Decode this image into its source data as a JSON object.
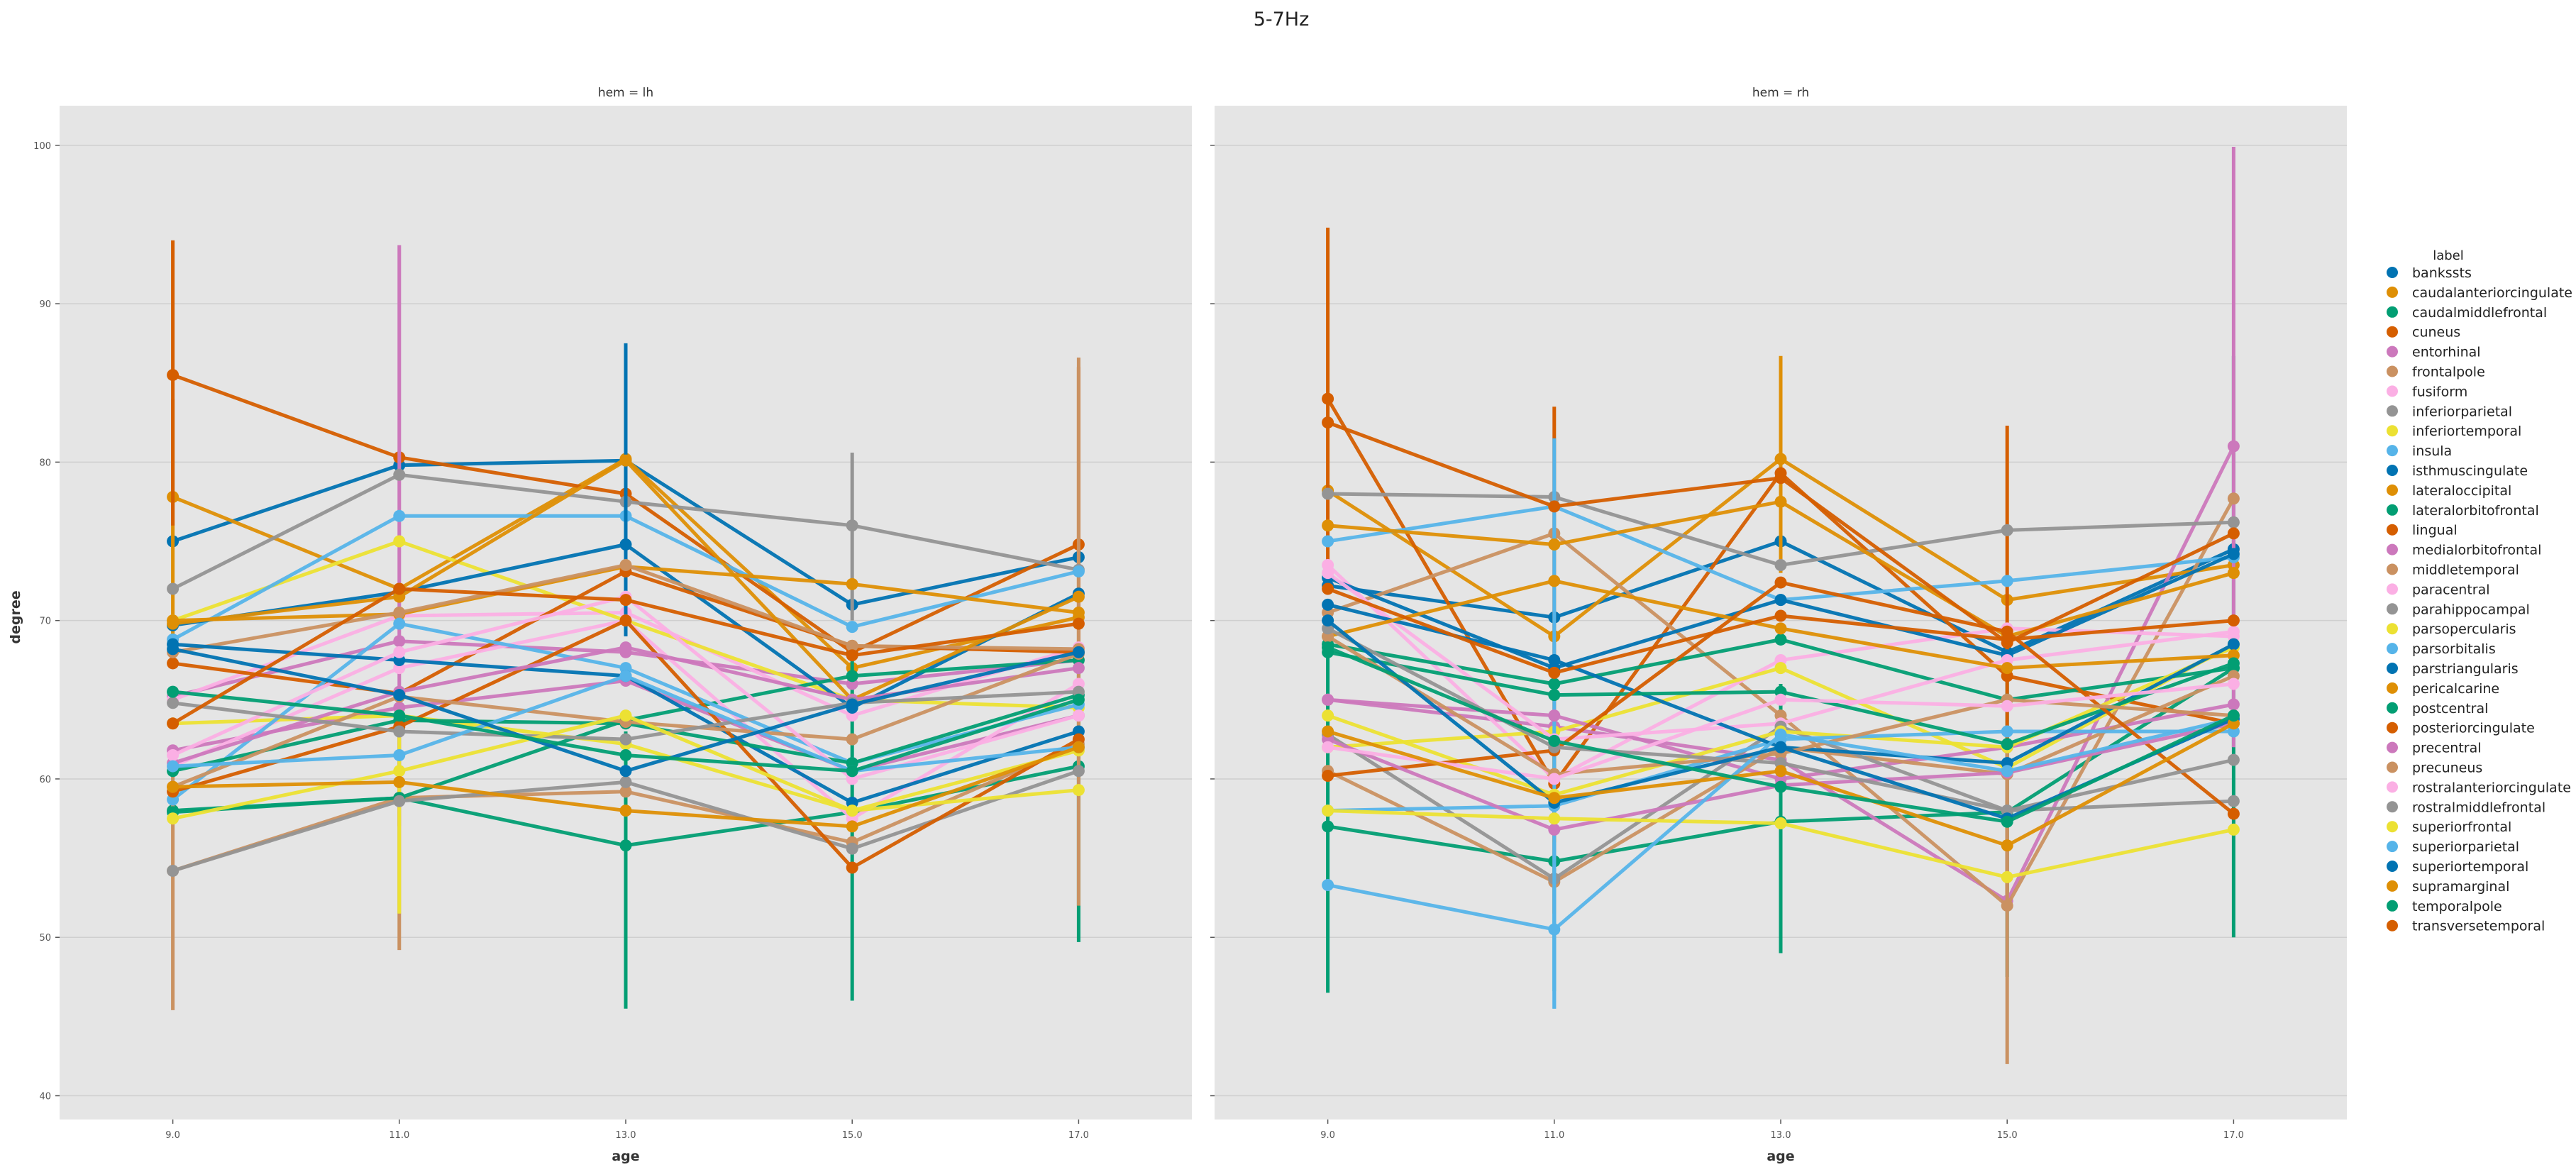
{
  "chart_data": {
    "type": "line",
    "title": "5-7Hz",
    "xlabel": "age",
    "ylabel": "degree",
    "x": [
      "9.0",
      "11.0",
      "13.0",
      "15.0",
      "17.0"
    ],
    "ylim": [
      38.5,
      102.5
    ],
    "yticks": [
      "40",
      "50",
      "60",
      "70",
      "80",
      "90",
      "100"
    ],
    "grid": true,
    "legend": {
      "title": "label",
      "placement": "right"
    },
    "palette": [
      "#0173b2",
      "#de8f05",
      "#029e73",
      "#d55e00",
      "#cc78bc",
      "#ca9161",
      "#fbafe4",
      "#949494",
      "#ece133",
      "#56b4e9"
    ],
    "labels": [
      "bankssts",
      "caudalanteriorcingulate",
      "caudalmiddlefrontal",
      "cuneus",
      "entorhinal",
      "frontalpole",
      "fusiform",
      "inferiorparietal",
      "inferiortemporal",
      "insula",
      "isthmuscingulate",
      "lateraloccipital",
      "lateralorbitofrontal",
      "lingual",
      "medialorbitofrontal",
      "middletemporal",
      "paracentral",
      "parahippocampal",
      "parsopercularis",
      "parsorbitalis",
      "parstriangularis",
      "pericalcarine",
      "postcentral",
      "posteriorcingulate",
      "precentral",
      "precuneus",
      "rostralanteriorcingulate",
      "rostralmiddlefrontal",
      "superiorfrontal",
      "superiorparietal",
      "superiortemporal",
      "supramarginal",
      "temporalpole",
      "transversetemporal"
    ],
    "facets": [
      {
        "title": "hem = lh",
        "series": [
          {
            "values": [
              75.0,
              79.8,
              80.1,
              71.0,
              74.0
            ]
          },
          {
            "values": [
              77.8,
              72.0,
              80.2,
              67.0,
              70.2
            ],
            "error_bars": [
              {
                "x": 0,
                "lo": 68,
                "hi": 84
              },
              {
                "x": 2,
                "lo": 72,
                "hi": 86
              }
            ]
          },
          {
            "values": [
              58.0,
              58.8,
              55.8,
              57.9,
              60.8
            ],
            "error_bars": [
              {
                "x": 2,
                "lo": 45.5,
                "hi": 63
              },
              {
                "x": 3,
                "lo": 46,
                "hi": 68
              },
              {
                "x": 4,
                "lo": 49.7,
                "hi": 68
              }
            ]
          },
          {
            "values": [
              85.5,
              80.3,
              78.0,
              68.0,
              74.8
            ],
            "error_bars": [
              {
                "x": 0,
                "lo": 76,
                "hi": 94
              },
              {
                "x": 4,
                "lo": 68,
                "hi": 86
              }
            ]
          },
          {
            "values": [
              65.2,
              68.7,
              68.0,
              66.0,
              67.5
            ],
            "error_bars": [
              {
                "x": 1,
                "lo": 57,
                "hi": 93.7
              }
            ]
          },
          {
            "values": [
              54.2,
              58.8,
              59.2,
              56.0,
              62.2
            ],
            "error_bars": [
              {
                "x": 0,
                "lo": 45.4,
                "hi": 62
              },
              {
                "x": 1,
                "lo": 49.2,
                "hi": 63
              },
              {
                "x": 4,
                "lo": 52,
                "hi": 86.6
              }
            ]
          },
          {
            "values": [
              65.0,
              70.3,
              70.5,
              64.0,
              68.3
            ]
          },
          {
            "values": [
              72.0,
              79.2,
              77.5,
              76.0,
              73.2
            ],
            "error_bars": [
              {
                "x": 3,
                "lo": 70,
                "hi": 80.6
              }
            ]
          },
          {
            "values": [
              70.0,
              75.0,
              70.0,
              65.0,
              64.5
            ],
            "error_bars": [
              {
                "x": 1,
                "lo": 51.5,
                "hi": 63
              }
            ]
          },
          {
            "values": [
              68.8,
              76.6,
              76.6,
              69.6,
              73.1
            ]
          },
          {
            "values": [
              69.7,
              71.8,
              74.8,
              64.5,
              71.7
            ],
            "error_bars": [
              {
                "x": 2,
                "lo": 69,
                "hi": 87.5
              }
            ]
          },
          {
            "values": [
              70.0,
              70.4,
              73.4,
              72.3,
              70.5
            ]
          },
          {
            "values": [
              57.9,
              58.8,
              63.7,
              66.5,
              67.5
            ]
          },
          {
            "values": [
              67.3,
              65.4,
              73.1,
              68.4,
              68.0
            ]
          },
          {
            "values": [
              61.8,
              64.5,
              66.2,
              60.5,
              64.0
            ]
          },
          {
            "values": [
              68.0,
              70.5,
              73.5,
              68.4,
              68.2
            ]
          },
          {
            "values": [
              60.8,
              67.0,
              70.0,
              57.5,
              66.0
            ]
          },
          {
            "values": [
              54.2,
              58.6,
              59.8,
              55.6,
              60.5
            ]
          },
          {
            "values": [
              63.5,
              64.0,
              62.2,
              58.0,
              61.8
            ]
          },
          {
            "values": [
              58.7,
              69.8,
              67.0,
              61.0,
              64.7
            ]
          },
          {
            "values": [
              68.5,
              67.5,
              66.5,
              58.5,
              63.0
            ]
          },
          {
            "values": [
              69.8,
              71.5,
              80.1,
              65.0,
              71.5
            ]
          },
          {
            "values": [
              60.5,
              63.7,
              63.5,
              61.0,
              65.3
            ]
          },
          {
            "values": [
              59.2,
              63.3,
              70.0,
              54.4,
              62.5
            ]
          },
          {
            "values": [
              61.0,
              65.5,
              68.3,
              65.0,
              67.0
            ]
          },
          {
            "values": [
              59.5,
              65.2,
              63.6,
              62.5,
              67.9
            ]
          },
          {
            "values": [
              61.5,
              68.0,
              71.5,
              60.0,
              64.0
            ]
          },
          {
            "values": [
              64.8,
              63.0,
              62.5,
              64.8,
              65.5
            ]
          },
          {
            "values": [
              57.5,
              60.5,
              64.0,
              58.0,
              59.3
            ]
          },
          {
            "values": [
              60.8,
              61.5,
              66.5,
              60.5,
              62.0
            ]
          },
          {
            "values": [
              68.2,
              65.3,
              60.5,
              64.7,
              68.0
            ]
          },
          {
            "values": [
              59.5,
              59.8,
              58.0,
              57.0,
              62.0
            ]
          },
          {
            "values": [
              65.5,
              64.0,
              61.5,
              60.5,
              65.0
            ]
          },
          {
            "values": [
              63.5,
              72.0,
              71.3,
              67.8,
              69.8
            ]
          }
        ]
      },
      {
        "title": "hem = rh",
        "series": [
          {
            "values": [
              72.2,
              70.2,
              75.0,
              68.0,
              74.5
            ]
          },
          {
            "values": [
              78.2,
              69.0,
              80.2,
              71.3,
              73.5
            ],
            "error_bars": [
              {
                "x": 2,
                "lo": 73,
                "hi": 86.7
              }
            ]
          },
          {
            "values": [
              57.0,
              54.8,
              57.3,
              57.9,
              67.0
            ],
            "error_bars": [
              {
                "x": 0,
                "lo": 46.5,
                "hi": 68
              },
              {
                "x": 1,
                "lo": 46.6,
                "hi": 62
              },
              {
                "x": 2,
                "lo": 49,
                "hi": 66
              },
              {
                "x": 3,
                "lo": 47.5,
                "hi": 69
              },
              {
                "x": 4,
                "lo": 50,
                "hi": 86.7
              }
            ]
          },
          {
            "values": [
              84.0,
              59.7,
              79.3,
              66.5,
              63.5
            ],
            "error_bars": [
              {
                "x": 0,
                "lo": 73,
                "hi": 94.8
              },
              {
                "x": 1,
                "lo": 51.5,
                "hi": 83.5
              },
              {
                "x": 3,
                "lo": 52,
                "hi": 82.3
              }
            ]
          },
          {
            "values": [
              65.0,
              63.3,
              61.2,
              52.3,
              81.0
            ],
            "error_bars": [
              {
                "x": 4,
                "lo": 62,
                "hi": 99.9
              }
            ]
          },
          {
            "values": [
              70.5,
              75.5,
              64.0,
              52.0,
              77.7
            ],
            "error_bars": [
              {
                "x": 3,
                "lo": 42,
                "hi": 62
              }
            ]
          },
          {
            "values": [
              73.5,
              60.0,
              67.5,
              69.5,
              69.0
            ]
          },
          {
            "values": [
              78.0,
              77.8,
              73.5,
              75.7,
              76.2
            ]
          },
          {
            "values": [
              62.0,
              63.0,
              67.0,
              60.7,
              68.5
            ]
          },
          {
            "values": [
              75.0,
              77.2,
              71.3,
              72.5,
              74.0
            ],
            "error_bars": [
              {
                "x": 1,
                "lo": 45.5,
                "hi": 81.5
              }
            ]
          },
          {
            "values": [
              72.7,
              67.0,
              71.3,
              67.8,
              74.2
            ]
          },
          {
            "values": [
              76.0,
              74.8,
              77.5,
              69.0,
              73.0
            ]
          },
          {
            "values": [
              68.5,
              66.0,
              68.8,
              65.0,
              67.0
            ]
          },
          {
            "values": [
              82.5,
              77.2,
              79.0,
              68.6,
              75.5
            ]
          },
          {
            "values": [
              65.0,
              64.0,
              60.0,
              62.0,
              64.7
            ]
          },
          {
            "values": [
              60.5,
              53.5,
              62.0,
              60.3,
              66.5
            ]
          },
          {
            "values": [
              73.0,
              62.5,
              63.5,
              67.5,
              69.3
            ]
          },
          {
            "values": [
              62.8,
              53.7,
              63.3,
              58.0,
              58.6
            ]
          },
          {
            "values": [
              64.0,
              59.0,
              63.0,
              62.0,
              68.3
            ]
          },
          {
            "values": [
              58.0,
              58.3,
              62.5,
              63.0,
              63.0
            ]
          },
          {
            "values": [
              71.0,
              67.5,
              62.0,
              61.0,
              68.5
            ]
          },
          {
            "values": [
              69.0,
              72.5,
              69.5,
              67.0,
              67.8
            ]
          },
          {
            "values": [
              68.0,
              65.3,
              65.5,
              62.2,
              67.3
            ]
          },
          {
            "values": [
              60.2,
              61.8,
              72.4,
              69.3,
              57.8
            ]
          },
          {
            "values": [
              62.5,
              56.8,
              59.6,
              60.4,
              63.5
            ]
          },
          {
            "values": [
              69.0,
              60.3,
              61.6,
              65.0,
              64.0
            ]
          },
          {
            "values": [
              62.0,
              60.0,
              65.0,
              64.6,
              66.0
            ]
          },
          {
            "values": [
              69.5,
              62.0,
              61.0,
              58.0,
              61.2
            ]
          },
          {
            "values": [
              58.0,
              57.5,
              57.2,
              53.8,
              56.8
            ]
          },
          {
            "values": [
              53.3,
              50.5,
              62.8,
              60.5,
              63.8
            ],
            "error_bars": [
              {
                "x": 1,
                "lo": 45.5,
                "hi": 56
              }
            ]
          },
          {
            "values": [
              70.0,
              58.5,
              62.0,
              57.5,
              63.8
            ]
          },
          {
            "values": [
              63.0,
              58.8,
              60.5,
              55.8,
              63.5
            ]
          },
          {
            "values": [
              68.3,
              62.4,
              59.5,
              57.3,
              64.0
            ]
          },
          {
            "values": [
              72.0,
              66.7,
              70.3,
              68.8,
              70.0
            ]
          }
        ]
      }
    ]
  }
}
